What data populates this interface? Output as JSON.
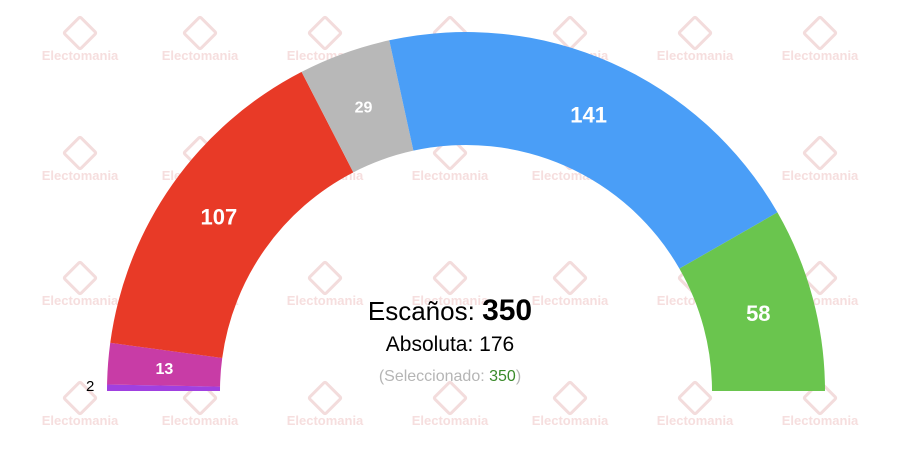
{
  "watermark": {
    "text": "Electomania"
  },
  "chart_data": {
    "type": "parliament-hemicycle",
    "total_seats": 350,
    "series": [
      {
        "value": 2,
        "color": "#a040e0",
        "show_label": "outside"
      },
      {
        "value": 13,
        "color": "#c83ca6",
        "show_label": "inside"
      },
      {
        "value": 107,
        "color": "#e83a27",
        "show_label": "inside"
      },
      {
        "value": 29,
        "color": "#b8b8b8",
        "show_label": "inside"
      },
      {
        "value": 141,
        "color": "#4a9ef7",
        "show_label": "inside"
      },
      {
        "value": 58,
        "color": "#6ac54e",
        "show_label": "inside"
      }
    ]
  },
  "summary": {
    "seats_label": "Escaños:",
    "seats_value": "350",
    "majority_label": "Absoluta:",
    "majority_value": "176",
    "selected_prefix": "(Seleccionado:",
    "selected_value": "350",
    "selected_suffix": ")"
  }
}
